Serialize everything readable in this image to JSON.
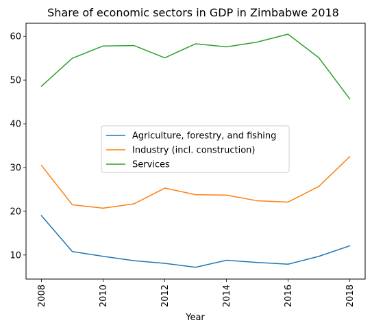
{
  "chart_data": {
    "type": "line",
    "title": "Share of economic sectors in GDP in Zimbabwe 2018",
    "xlabel": "Year",
    "ylabel": "",
    "x": [
      2008,
      2009,
      2010,
      2011,
      2012,
      2013,
      2014,
      2015,
      2016,
      2017,
      2018
    ],
    "xticks": [
      "2008",
      "2010",
      "2012",
      "2014",
      "2016",
      "2018"
    ],
    "yticks": [
      "10",
      "20",
      "30",
      "40",
      "50",
      "60"
    ],
    "xlim": [
      2007.5,
      2018.5
    ],
    "ylim": [
      4.5,
      63
    ],
    "grid": false,
    "legend_position": "center",
    "series": [
      {
        "name": "Agriculture, forestry, and fishing",
        "color": "#1f77b4",
        "values": [
          19.0,
          10.8,
          9.7,
          8.7,
          8.1,
          7.2,
          8.8,
          8.3,
          7.9,
          9.7,
          12.1
        ]
      },
      {
        "name": "Industry (incl. construction)",
        "color": "#ff7f0e",
        "values": [
          30.5,
          21.5,
          20.7,
          21.7,
          25.3,
          23.8,
          23.7,
          22.4,
          22.1,
          25.7,
          32.5
        ]
      },
      {
        "name": "Services",
        "color": "#2ca02c",
        "values": [
          48.6,
          55.0,
          57.8,
          57.9,
          55.1,
          58.3,
          57.6,
          58.7,
          60.5,
          55.1,
          45.7
        ]
      }
    ]
  }
}
